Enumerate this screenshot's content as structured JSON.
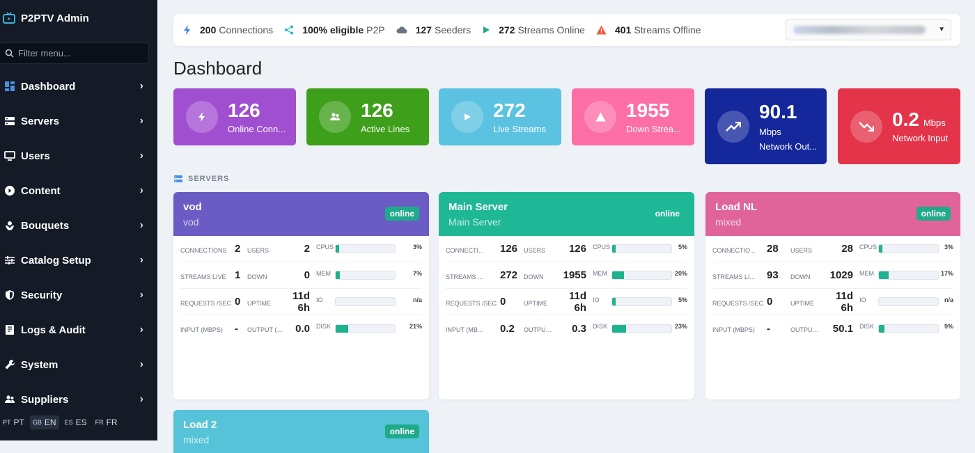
{
  "brand": {
    "name": "P2PTV Admin"
  },
  "filter": {
    "placeholder": "Filter menu..."
  },
  "nav": [
    {
      "label": "Dashboard",
      "icon": "dashboard-icon"
    },
    {
      "label": "Servers",
      "icon": "server-icon"
    },
    {
      "label": "Users",
      "icon": "monitor-icon"
    },
    {
      "label": "Content",
      "icon": "play-circle-icon"
    },
    {
      "label": "Bouquets",
      "icon": "bouquet-icon"
    },
    {
      "label": "Catalog Setup",
      "icon": "sliders-icon"
    },
    {
      "label": "Security",
      "icon": "shield-icon"
    },
    {
      "label": "Logs & Audit",
      "icon": "book-icon"
    },
    {
      "label": "System",
      "icon": "wrench-icon"
    },
    {
      "label": "Suppliers",
      "icon": "users-icon"
    }
  ],
  "langs": [
    {
      "code": "PT",
      "label": "PT",
      "active": false
    },
    {
      "code": "GB",
      "label": "EN",
      "active": true
    },
    {
      "code": "ES",
      "label": "ES",
      "active": false
    },
    {
      "code": "FR",
      "label": "FR",
      "active": false
    }
  ],
  "topstats": [
    {
      "value": "200",
      "label": "Connections",
      "icon": "bolt-icon",
      "color": "#3b82f6"
    },
    {
      "value": "100% eligible",
      "label": "P2P",
      "icon": "share-icon",
      "color": "#22b8c6"
    },
    {
      "value": "127",
      "label": "Seeders",
      "icon": "cloud-icon",
      "color": "#6b7280"
    },
    {
      "value": "272",
      "label": "Streams Online",
      "icon": "play-icon",
      "color": "#1faa89"
    },
    {
      "value": "401",
      "label": "Streams Offline",
      "icon": "warning-icon",
      "color": "#ef5a3c"
    }
  ],
  "page_title": "Dashboard",
  "cards": [
    {
      "value": "126",
      "unit": "",
      "label": "Online Conn...",
      "color": "#a04fd0",
      "icon": "bolt-icon"
    },
    {
      "value": "126",
      "unit": "",
      "label": "Active Lines",
      "color": "#3e9f1a",
      "icon": "users-icon"
    },
    {
      "value": "272",
      "unit": "",
      "label": "Live Streams",
      "color": "#5bc2e1",
      "icon": "play-icon"
    },
    {
      "value": "1955",
      "unit": "",
      "label": "Down Strea...",
      "color": "#fb6fa6",
      "icon": "warning-icon"
    },
    {
      "value": "90.1",
      "unit": "Mbps",
      "label": "Network Out...",
      "color": "#14279b",
      "icon": "trend-up-icon"
    },
    {
      "value": "0.2",
      "unit": "Mbps",
      "label": "Network Input",
      "color": "#e3344a",
      "icon": "trend-down-icon"
    }
  ],
  "section_label": "SERVERS",
  "servers": [
    {
      "name": "vod",
      "sub": "vod",
      "status": "online",
      "color": "#6a5bc5",
      "rows": [
        {
          "l1": "CONNECTIONS",
          "v1": "2",
          "l2": "USERS",
          "v2": "2",
          "l3": "CPUS",
          "p": "3%",
          "f": 3
        },
        {
          "l1": "STREAMS LIVE",
          "v1": "1",
          "l2": "DOWN",
          "v2": "0",
          "l3": "MEM",
          "p": "7%",
          "f": 7
        },
        {
          "l1": "REQUESTS /SEC",
          "v1": "0",
          "l2": "UPTIME",
          "v2": "11d 6h",
          "l3": "IO",
          "p": "n/a",
          "f": 0
        },
        {
          "l1": "INPUT (MBPS)",
          "v1": "-",
          "l2": "OUTPUT (M...",
          "v2": "0.0",
          "l3": "DISK",
          "p": "21%",
          "f": 21
        }
      ]
    },
    {
      "name": "Main Server",
      "sub": "Main Server",
      "status": "online",
      "color": "#1fb896",
      "rows": [
        {
          "l1": "CONNECTI...",
          "v1": "126",
          "l2": "USERS",
          "v2": "126",
          "l3": "CPUS",
          "p": "5%",
          "f": 5
        },
        {
          "l1": "STREAMS ...",
          "v1": "272",
          "l2": "DOWN",
          "v2": "1955",
          "l3": "MEM",
          "p": "20%",
          "f": 20
        },
        {
          "l1": "REQUESTS /SEC",
          "v1": "0",
          "l2": "UPTIME",
          "v2": "11d 6h",
          "l3": "IO",
          "p": "5%",
          "f": 5
        },
        {
          "l1": "INPUT (MB...",
          "v1": "0.2",
          "l2": "OUTPUT (M...",
          "v2": "0.3",
          "l3": "DISK",
          "p": "23%",
          "f": 23
        }
      ]
    },
    {
      "name": "Load NL",
      "sub": "mixed",
      "status": "online",
      "color": "#e0649a",
      "rows": [
        {
          "l1": "CONNECTIO...",
          "v1": "28",
          "l2": "USERS",
          "v2": "28",
          "l3": "CPUS",
          "p": "3%",
          "f": 3
        },
        {
          "l1": "STREAMS LI...",
          "v1": "93",
          "l2": "DOWN",
          "v2": "1029",
          "l3": "MEM",
          "p": "17%",
          "f": 17
        },
        {
          "l1": "REQUESTS /SEC",
          "v1": "0",
          "l2": "UPTIME",
          "v2": "11d 6h",
          "l3": "IO",
          "p": "n/a",
          "f": 0
        },
        {
          "l1": "INPUT (MBPS)",
          "v1": "-",
          "l2": "OUTPUT (...",
          "v2": "50.1",
          "l3": "DISK",
          "p": "9%",
          "f": 9
        }
      ]
    },
    {
      "name": "Load 2",
      "sub": "mixed",
      "status": "online",
      "color": "#56c3d8",
      "rows": []
    }
  ]
}
